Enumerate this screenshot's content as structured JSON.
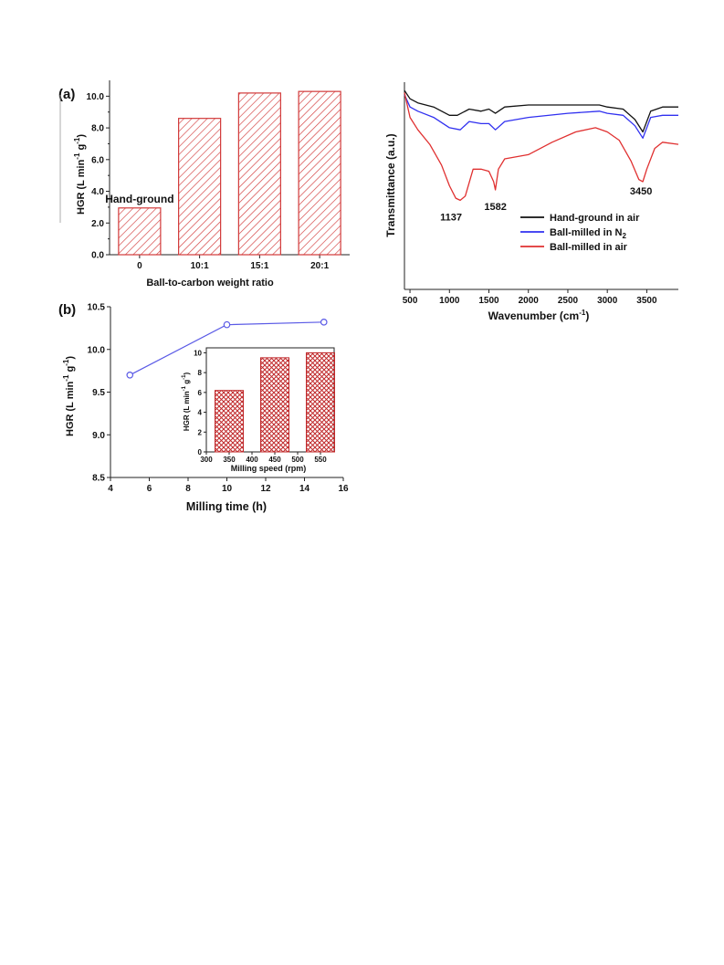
{
  "colors": {
    "bar_stroke": "#d23a3a",
    "line_blue": "#5a5ae6",
    "ftir_black": "#111111",
    "ftir_blue": "#3030f0",
    "ftir_red": "#e03030"
  },
  "chart_data": [
    {
      "panel": "(a)",
      "type": "bar",
      "categories": [
        "0",
        "10:1",
        "15:1",
        "20:1"
      ],
      "values": [
        2.95,
        8.6,
        10.2,
        10.3
      ],
      "xlabel": "Ball-to-carbon weight ratio",
      "ylabel": "HGR (L min-1 g-1)",
      "ylim": [
        0,
        11
      ],
      "yticks": [
        "0.0",
        "2.0",
        "4.0",
        "6.0",
        "8.0",
        "10.0"
      ],
      "annotation": "Hand-ground",
      "pattern": "diagonal-hatch"
    },
    {
      "panel": "(b)",
      "type": "line",
      "x": [
        5,
        10,
        15
      ],
      "y": [
        9.7,
        10.29,
        10.32
      ],
      "xlabel": "Milling time (h)",
      "ylabel": "HGR (L min-1 g-1)",
      "xlim": [
        4,
        16
      ],
      "ylim": [
        8.5,
        10.5
      ],
      "xticks": [
        "4",
        "6",
        "8",
        "10",
        "12",
        "14",
        "16"
      ],
      "yticks": [
        "8.5",
        "9.0",
        "9.5",
        "10.0",
        "10.5"
      ],
      "inset": {
        "type": "bar",
        "x": [
          350,
          450,
          550
        ],
        "values": [
          6.2,
          9.5,
          10.0
        ],
        "xlabel": "Milling speed (rpm)",
        "ylabel": "HGR (L min-1 g-1)",
        "xlim": [
          300,
          580
        ],
        "ylim": [
          0,
          10.5
        ],
        "xticks": [
          "300",
          "350",
          "400",
          "450",
          "500",
          "550"
        ],
        "yticks": [
          "0",
          "2",
          "4",
          "6",
          "8",
          "10"
        ],
        "pattern": "cross-hatch"
      }
    },
    {
      "panel": "FTIR",
      "type": "line",
      "xlabel": "Wavenumber (cm-1)",
      "ylabel": "Transmittance (a.u.)",
      "xlim": [
        430,
        3900
      ],
      "xticks": [
        "500",
        "1000",
        "1500",
        "2000",
        "2500",
        "3000",
        "3500"
      ],
      "y_axis_ticks": false,
      "annotations": [
        "1137",
        "1582",
        "3450"
      ],
      "legend_position": "middle-right",
      "series": [
        {
          "name": "Hand-ground in air",
          "color": "#111111",
          "x": [
            430,
            500,
            600,
            800,
            1000,
            1100,
            1250,
            1400,
            1500,
            1582,
            1700,
            2000,
            2500,
            2900,
            3000,
            3200,
            3350,
            3450,
            3550,
            3700,
            3900
          ],
          "y": [
            0.96,
            0.92,
            0.9,
            0.88,
            0.84,
            0.84,
            0.87,
            0.86,
            0.87,
            0.85,
            0.88,
            0.89,
            0.89,
            0.89,
            0.88,
            0.87,
            0.82,
            0.76,
            0.86,
            0.88,
            0.88
          ]
        },
        {
          "name": "Ball-milled in N2",
          "color": "#3030f0",
          "x": [
            430,
            500,
            600,
            800,
            1000,
            1137,
            1250,
            1400,
            1500,
            1582,
            1700,
            2000,
            2500,
            2900,
            3000,
            3200,
            3350,
            3450,
            3550,
            3700,
            3900
          ],
          "y": [
            0.94,
            0.88,
            0.86,
            0.83,
            0.78,
            0.77,
            0.81,
            0.8,
            0.8,
            0.77,
            0.81,
            0.83,
            0.85,
            0.86,
            0.85,
            0.84,
            0.79,
            0.73,
            0.83,
            0.84,
            0.84
          ]
        },
        {
          "name": "Ball-milled in air",
          "color": "#e03030",
          "x": [
            430,
            500,
            600,
            750,
            900,
            1000,
            1080,
            1137,
            1200,
            1300,
            1400,
            1500,
            1560,
            1582,
            1620,
            1700,
            2000,
            2300,
            2600,
            2850,
            3000,
            3150,
            3300,
            3400,
            3450,
            3500,
            3600,
            3700,
            3900
          ],
          "y": [
            0.95,
            0.83,
            0.77,
            0.7,
            0.6,
            0.5,
            0.44,
            0.43,
            0.45,
            0.58,
            0.58,
            0.57,
            0.52,
            0.48,
            0.58,
            0.63,
            0.65,
            0.71,
            0.76,
            0.78,
            0.76,
            0.72,
            0.62,
            0.53,
            0.52,
            0.58,
            0.68,
            0.71,
            0.7
          ]
        }
      ]
    }
  ],
  "labels": {
    "panel_a": "(a)",
    "panel_b": "(b)",
    "hgr_main": "HGR (L min",
    "hgr_exp1": "-1",
    "hgr_mid": " g",
    "hgr_exp2": "-1",
    "hgr_end": ")",
    "wavenumber_main": "Wavenumber (cm",
    "wavenumber_exp": "-1",
    "wavenumber_end": ")",
    "legend_n2_main": "Ball-milled in N",
    "legend_n2_sub": "2"
  }
}
